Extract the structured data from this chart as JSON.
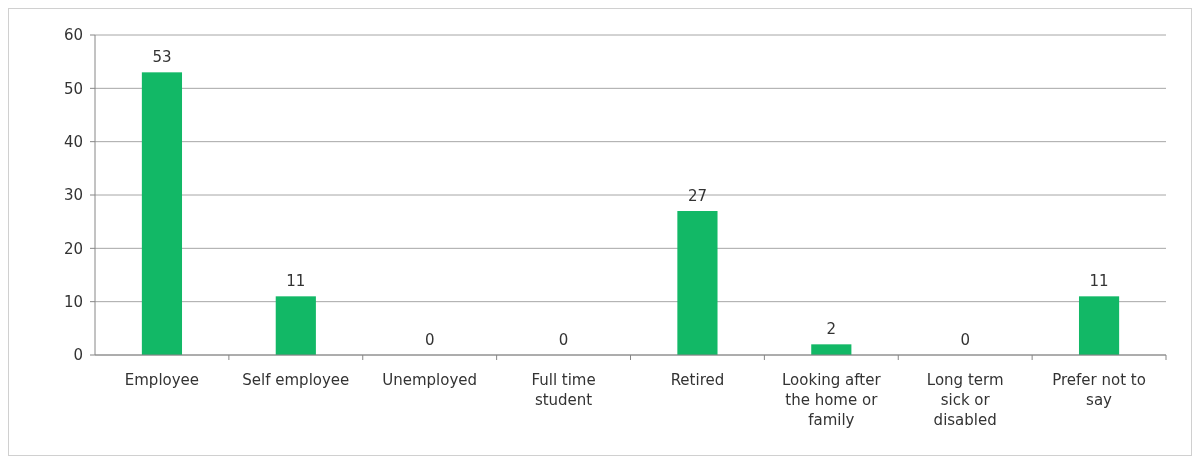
{
  "chart_data": {
    "type": "bar",
    "categories": [
      "Employee",
      "Self employee",
      "Unemployed",
      "Full time student",
      "Retired",
      "Looking after the home or family",
      "Long term sick or disabled",
      "Prefer not to say"
    ],
    "values": [
      53,
      11,
      0,
      0,
      27,
      2,
      0,
      11
    ],
    "color": "#12b866",
    "ylim": [
      0,
      60
    ],
    "yticks": [
      0,
      10,
      20,
      30,
      40,
      50,
      60
    ],
    "grid": "y",
    "data_labels": true
  }
}
